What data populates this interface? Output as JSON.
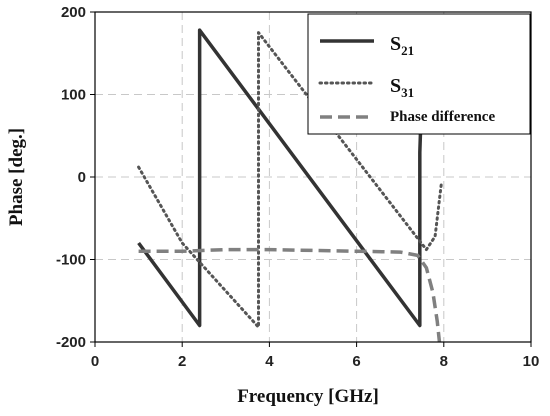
{
  "chart_data": {
    "type": "line",
    "xlabel": "Frequency [GHz]",
    "ylabel": "Phase [deg.]",
    "xlim": [
      0,
      10
    ],
    "ylim": [
      -200,
      200
    ],
    "xticks": [
      0,
      2,
      4,
      6,
      8,
      10
    ],
    "yticks": [
      -200,
      -100,
      0,
      100,
      200
    ],
    "grid": true,
    "legend_position": "top-right",
    "series": [
      {
        "name": "S21",
        "name_main": "S",
        "name_sub": "21",
        "style": "solid",
        "color": "#333333",
        "x": [
          1.0,
          2.4,
          2.4,
          7.45,
          7.45,
          7.5
        ],
        "y": [
          -80,
          -180,
          178,
          -180,
          30,
          110
        ]
      },
      {
        "name": "S31",
        "name_main": "S",
        "name_sub": "31",
        "style": "dotted",
        "color": "#555555",
        "x": [
          1.0,
          2.0,
          3.75,
          3.75,
          7.6,
          7.8,
          7.95
        ],
        "y": [
          12,
          -80,
          -182,
          175,
          -88,
          -72,
          -5
        ]
      },
      {
        "name": "Phase difference",
        "style": "dashed",
        "color": "#808080",
        "x": [
          1.0,
          2.0,
          3.0,
          4.0,
          5.0,
          6.0,
          7.0,
          7.4,
          7.6,
          7.75,
          7.85,
          7.92
        ],
        "y": [
          -90,
          -90,
          -88,
          -88,
          -89,
          -90,
          -91,
          -95,
          -110,
          -140,
          -175,
          -210
        ]
      }
    ]
  }
}
